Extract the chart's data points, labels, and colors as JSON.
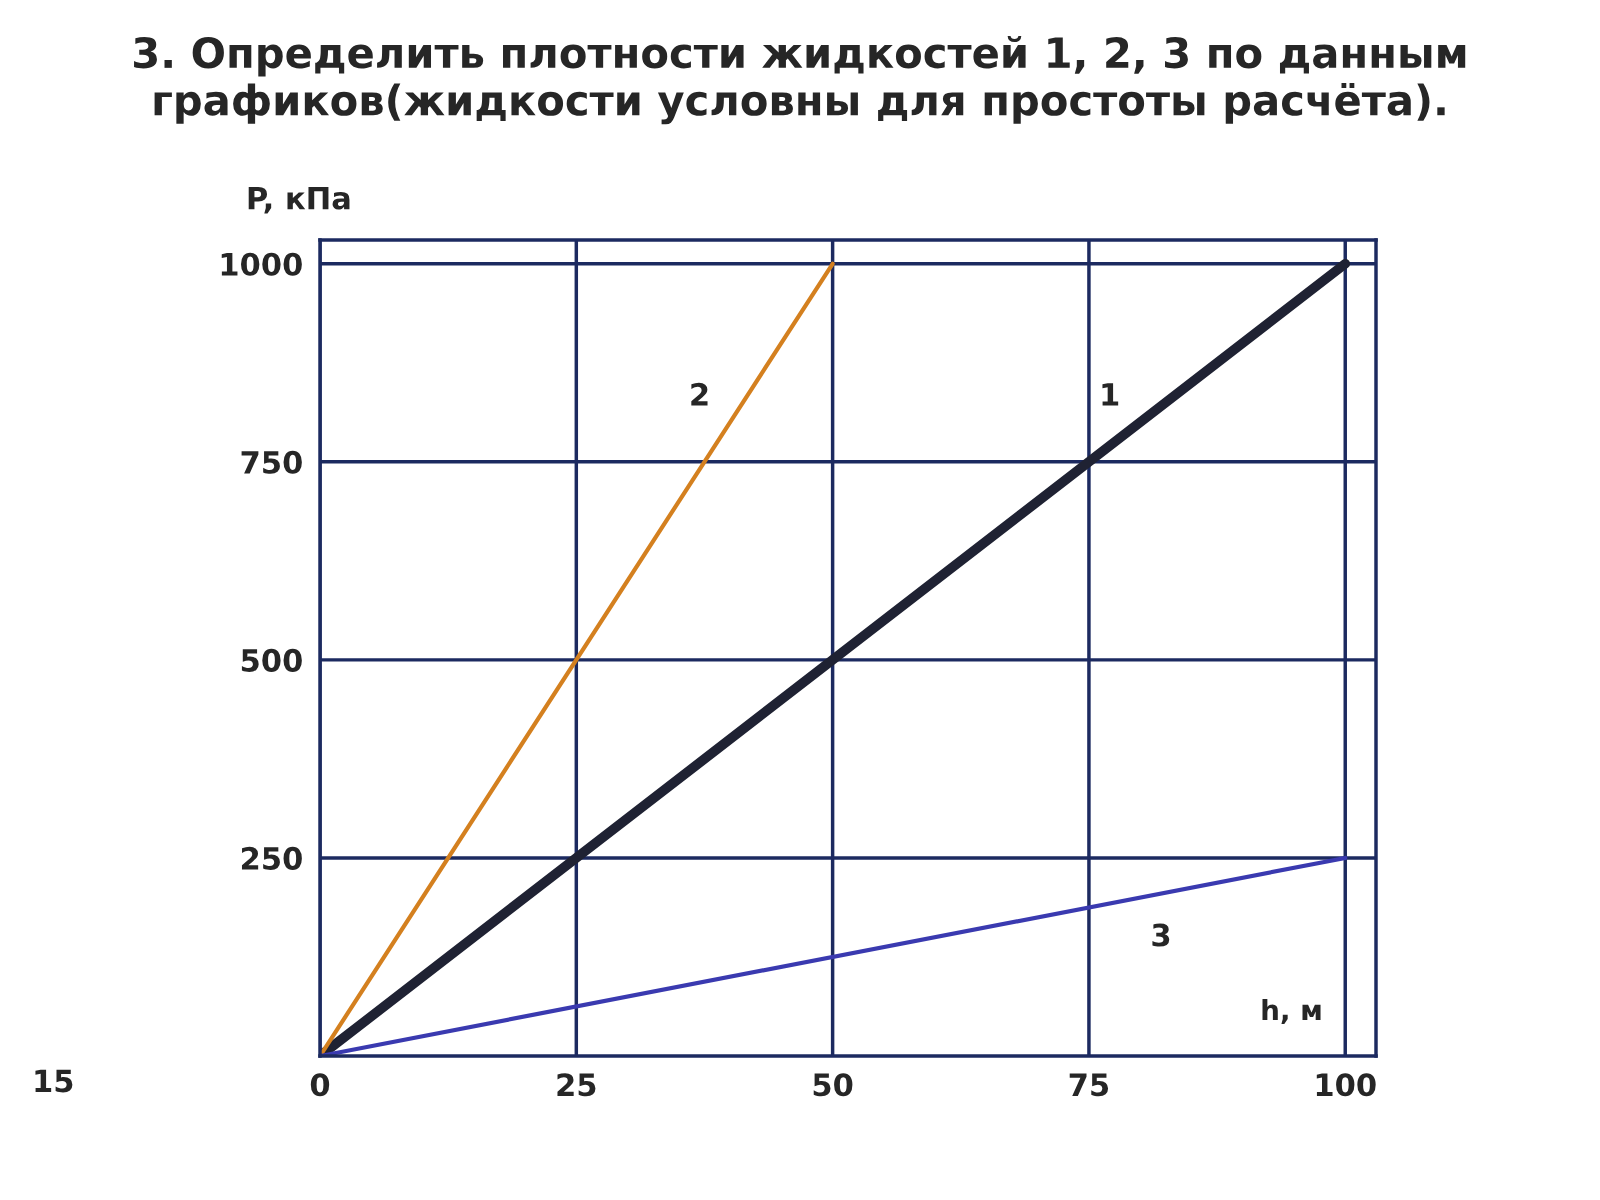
{
  "chart_data": {
    "type": "line",
    "title": "3. Определить плотности жидкостей 1, 2, 3 по данным графиков(жидкости условны для простоты расчёта).",
    "xlabel": "h, м",
    "ylabel": "P, кПа",
    "series": [
      {
        "name": "1",
        "color": "#1f2233",
        "x": [
          0,
          100
        ],
        "values": [
          0,
          1000
        ]
      },
      {
        "name": "2",
        "color": "#d4801f",
        "x": [
          0,
          50
        ],
        "values": [
          0,
          1000
        ]
      },
      {
        "name": "3",
        "color": "#3a3ab0",
        "x": [
          0,
          100
        ],
        "values": [
          0,
          250
        ]
      }
    ],
    "xlim": [
      0,
      103
    ],
    "ylim": [
      0,
      1030
    ],
    "xticks": [
      0,
      25,
      50,
      75,
      100
    ],
    "yticks": [
      250,
      500,
      750,
      1000
    ],
    "grid": true,
    "legend": false,
    "annotations": [
      "15"
    ]
  }
}
